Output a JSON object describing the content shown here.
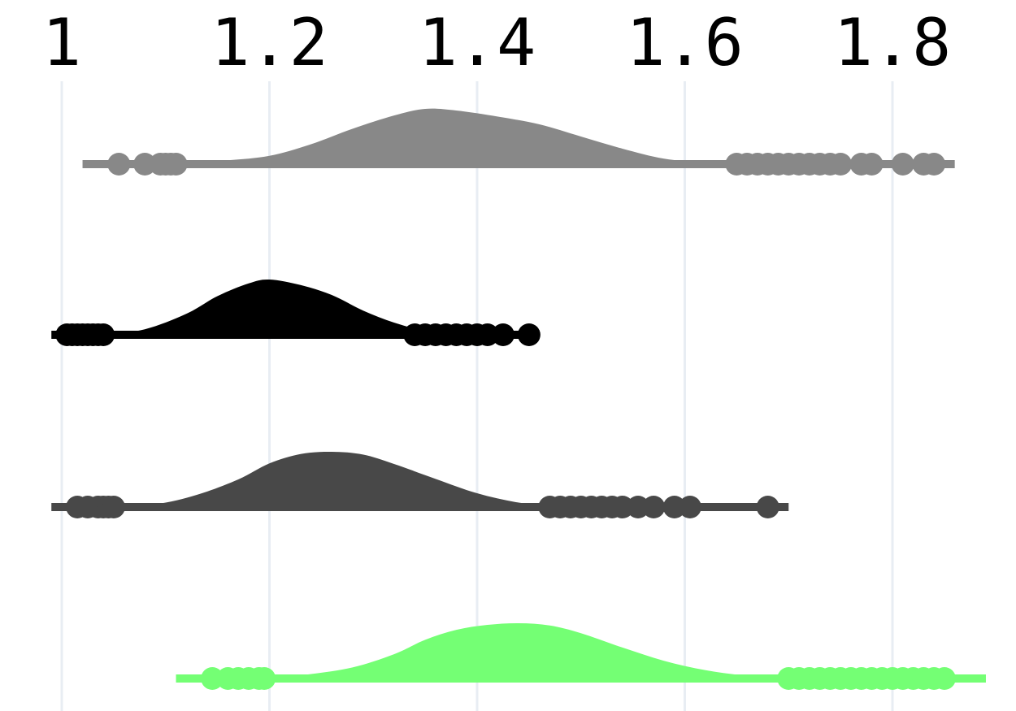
{
  "chart_data": {
    "type": "raincloud",
    "title": "",
    "xlabel": "",
    "ylabel": "",
    "xlim": [
      0.99,
      1.9
    ],
    "x_ticks": [
      1,
      1.2,
      1.4,
      1.6,
      1.8
    ],
    "x_tick_labels": [
      "1",
      "1.2",
      "1.4",
      "1.6",
      "1.8"
    ],
    "x_axis_position": "top",
    "grid": true,
    "legend": "none",
    "series": [
      {
        "color": "#888888",
        "range": [
          1.02,
          1.86
        ],
        "density": {
          "x": [
            1.07,
            1.12,
            1.16,
            1.2,
            1.24,
            1.28,
            1.32,
            1.35,
            1.38,
            1.42,
            1.46,
            1.5,
            1.54,
            1.58,
            1.62,
            1.66
          ],
          "y": [
            0.0,
            0.03,
            0.07,
            0.15,
            0.36,
            0.64,
            0.88,
            1.0,
            0.97,
            0.86,
            0.72,
            0.5,
            0.28,
            0.1,
            0.03,
            0.0
          ]
        },
        "outliers": [
          1.055,
          1.08,
          1.095,
          1.1,
          1.105,
          1.11,
          1.65,
          1.66,
          1.67,
          1.68,
          1.69,
          1.7,
          1.71,
          1.72,
          1.73,
          1.74,
          1.75,
          1.77,
          1.78,
          1.81,
          1.83,
          1.84
        ]
      },
      {
        "color": "#000000",
        "range": [
          0.99,
          1.46
        ],
        "density": {
          "x": [
            1.04,
            1.08,
            1.12,
            1.15,
            1.18,
            1.2,
            1.23,
            1.26,
            1.29,
            1.32,
            1.35,
            1.38
          ],
          "y": [
            0.0,
            0.1,
            0.38,
            0.7,
            0.93,
            1.0,
            0.9,
            0.72,
            0.44,
            0.22,
            0.07,
            0.0
          ]
        },
        "outliers": [
          1.005,
          1.01,
          1.015,
          1.02,
          1.025,
          1.03,
          1.035,
          1.04,
          1.34,
          1.35,
          1.36,
          1.37,
          1.38,
          1.39,
          1.4,
          1.41,
          1.425,
          1.45
        ]
      },
      {
        "color": "#484848",
        "range": [
          0.99,
          1.7
        ],
        "density": {
          "x": [
            1.04,
            1.09,
            1.13,
            1.17,
            1.2,
            1.23,
            1.26,
            1.29,
            1.32,
            1.36,
            1.4,
            1.44,
            1.48
          ],
          "y": [
            0.0,
            0.05,
            0.22,
            0.5,
            0.79,
            0.96,
            1.0,
            0.95,
            0.78,
            0.51,
            0.25,
            0.08,
            0.0
          ]
        },
        "outliers": [
          1.015,
          1.025,
          1.035,
          1.04,
          1.045,
          1.05,
          1.47,
          1.48,
          1.49,
          1.5,
          1.51,
          1.52,
          1.53,
          1.54,
          1.555,
          1.57,
          1.59,
          1.605,
          1.68
        ]
      },
      {
        "color": "#74ff74",
        "range": [
          1.11,
          1.89
        ],
        "density": {
          "x": [
            1.2,
            1.24,
            1.28,
            1.32,
            1.35,
            1.38,
            1.41,
            1.44,
            1.47,
            1.5,
            1.54,
            1.58,
            1.62,
            1.66,
            1.7
          ],
          "y": [
            0.0,
            0.08,
            0.2,
            0.44,
            0.7,
            0.88,
            0.97,
            1.0,
            0.96,
            0.82,
            0.56,
            0.32,
            0.15,
            0.05,
            0.0
          ]
        },
        "outliers": [
          1.145,
          1.16,
          1.17,
          1.18,
          1.19,
          1.195,
          1.7,
          1.71,
          1.72,
          1.73,
          1.74,
          1.75,
          1.76,
          1.77,
          1.78,
          1.79,
          1.8,
          1.81,
          1.82,
          1.83,
          1.84,
          1.85
        ]
      }
    ]
  }
}
